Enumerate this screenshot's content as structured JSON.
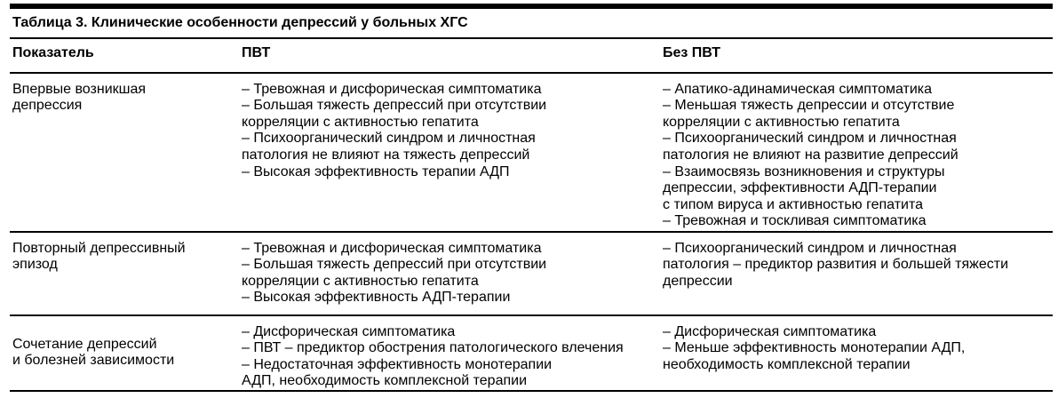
{
  "colors": {
    "text": "#000000",
    "rule": "#000000",
    "background": "#ffffff"
  },
  "table": {
    "title": "Таблица 3. Клинические особенности депрессий у больных ХГС",
    "columns": [
      "Показатель",
      "ПВТ",
      "Без ПВТ"
    ],
    "rows": [
      {
        "indicator_lines": [
          "Впервые возникшая",
          "депрессия"
        ],
        "pvt_lines": [
          "– Тревожная и дисфорическая симптоматика",
          "– Большая тяжесть депрессий при отсутствии",
          "корреляции с активностью гепатита",
          "– Психоорганический синдром и личностная",
          "патология не влияют на тяжесть депрессий",
          "– Высокая эффективность терапии АДП"
        ],
        "bez_pvt_lines": [
          "– Апатико-адинамическая симптоматика",
          "– Меньшая тяжесть депрессии и отсутствие",
          "корреляции с активностью гепатита",
          "– Психоорганический синдром и личностная",
          "патология не влияют на развитие депрессий",
          "– Взаимосвязь возникновения и структуры",
          "депрессии, эффективности АДП-терапии",
          "с типом вируса и активностью гепатита",
          "– Тревожная и тоскливая симптоматика"
        ]
      },
      {
        "indicator_lines": [
          "Повторный депрессивный",
          "эпизод"
        ],
        "pvt_lines": [
          "– Тревожная и дисфорическая симптоматика",
          "– Большая тяжесть депрессий при отсутствии",
          "корреляции с активностью гепатита",
          "– Высокая эффективность АДП-терапии"
        ],
        "bez_pvt_lines": [
          "– Психоорганический синдром и личностная",
          "патология – предиктор развития и большей тяжести",
          "депрессии"
        ]
      },
      {
        "indicator_lines": [
          "Сочетание депрессий",
          "и болезней зависимости"
        ],
        "pvt_lines": [
          "– Дисфорическая симптоматика",
          "– ПВТ – предиктор обострения патологического влечения",
          "– Недостаточная эффективность монотерапии",
          "АДП, необходимость комплексной терапии"
        ],
        "bez_pvt_lines": [
          "– Дисфорическая симптоматика",
          "– Меньше эффективность монотерапии АДП,",
          "необходимость комплексной терапии"
        ]
      }
    ]
  }
}
